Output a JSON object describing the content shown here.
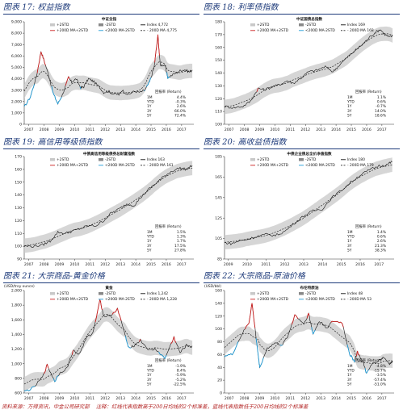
{
  "footer": {
    "source": "资料来源：万得资讯，中金公司研究部",
    "note": "注释：红线代表指数高于200日均线的2个标准差，蓝线代表指数低于200日均线的2个标准差"
  },
  "colors": {
    "title": "#1d3a7a",
    "index": "#111111",
    "ma": "#222222",
    "upper": "#cc1f1f",
    "lower": "#1e9bd7",
    "band": "#c8c8c8"
  },
  "panels": [
    {
      "title": "图表 17:  权益指数",
      "chart_data": {
        "type": "line",
        "chart_title": "中证全指",
        "ylabel": "",
        "y_ticks": [
          "0",
          "1,000",
          "2,000",
          "3,000",
          "4,000",
          "5,000",
          "6,000",
          "7,000",
          "8,000",
          "9,000"
        ],
        "ylim": [
          0,
          9000
        ],
        "x_ticks": [
          "2007",
          "2008",
          "2009",
          "2010",
          "2011",
          "2012",
          "2013",
          "2014",
          "2015",
          "2016",
          "2017"
        ],
        "xlim": [
          2006.7,
          2017.8
        ],
        "legend": [
          "+2STD",
          "-2STD",
          "Index  4,772",
          "+200D MA+2STD",
          "<200D MA-2STD",
          "- 200D MA  4,775"
        ],
        "returns_header": "回报率 (Return)",
        "returns": [
          {
            "k": "1M",
            "v": "4.4%"
          },
          {
            "k": "YTD",
            "v": "-0.3%"
          },
          {
            "k": "1Y",
            "v": "2.6%"
          },
          {
            "k": "3Y",
            "v": "66.0%"
          },
          {
            "k": "5Y",
            "v": "72.4%"
          }
        ],
        "series": [
          [
            2006.7,
            1500
          ],
          [
            2007.1,
            2400
          ],
          [
            2007.5,
            4200
          ],
          [
            2007.8,
            6400
          ],
          [
            2008.0,
            5600
          ],
          [
            2008.3,
            4300
          ],
          [
            2008.6,
            2700
          ],
          [
            2008.9,
            1800
          ],
          [
            2009.2,
            2600
          ],
          [
            2009.6,
            4100
          ],
          [
            2009.8,
            3700
          ],
          [
            2010.1,
            4000
          ],
          [
            2010.4,
            3200
          ],
          [
            2010.6,
            3300
          ],
          [
            2010.9,
            4000
          ],
          [
            2011.2,
            3800
          ],
          [
            2011.6,
            3300
          ],
          [
            2011.9,
            2800
          ],
          [
            2012.2,
            2900
          ],
          [
            2012.5,
            2700
          ],
          [
            2012.9,
            2600
          ],
          [
            2013.1,
            3000
          ],
          [
            2013.5,
            2600
          ],
          [
            2013.9,
            2900
          ],
          [
            2014.3,
            2800
          ],
          [
            2014.6,
            3000
          ],
          [
            2014.9,
            3700
          ],
          [
            2015.2,
            5000
          ],
          [
            2015.45,
            7800
          ],
          [
            2015.6,
            5200
          ],
          [
            2015.9,
            5200
          ],
          [
            2016.1,
            4100
          ],
          [
            2016.5,
            4400
          ],
          [
            2016.9,
            4700
          ],
          [
            2017.2,
            4800
          ],
          [
            2017.5,
            4600
          ],
          [
            2017.7,
            4770
          ]
        ]
      }
    },
    {
      "title": "图表 18:  利率债指数",
      "chart_data": {
        "type": "line",
        "chart_title": "中证国债总指数",
        "ylabel": "",
        "y_ticks": [
          "100",
          "110",
          "120",
          "130",
          "140",
          "150",
          "160",
          "170",
          "180"
        ],
        "ylim": [
          100,
          180
        ],
        "x_ticks": [
          "2007",
          "2008",
          "2009",
          "2010",
          "2011",
          "2012",
          "2013",
          "2014",
          "2015",
          "2016",
          "2017"
        ],
        "xlim": [
          2006.7,
          2017.8
        ],
        "legend": [
          "+2STD",
          "-2STD",
          "Index  169",
          "+200D MA+2STD",
          "<200D MA-2STD",
          "- 200D MA  168"
        ],
        "returns_header": "回报率 (Return)",
        "returns": [
          {
            "k": "1M",
            "v": "1.1%"
          },
          {
            "k": "YTD",
            "v": "0.6%"
          },
          {
            "k": "1Y",
            "v": "-0.7%"
          },
          {
            "k": "3Y",
            "v": "14.0%"
          },
          {
            "k": "5Y",
            "v": "18.6%"
          }
        ],
        "series": [
          [
            2006.7,
            114
          ],
          [
            2007.3,
            113
          ],
          [
            2007.9,
            114
          ],
          [
            2008.4,
            118
          ],
          [
            2008.9,
            128
          ],
          [
            2009.3,
            127
          ],
          [
            2009.8,
            129
          ],
          [
            2010.3,
            131
          ],
          [
            2010.8,
            134
          ],
          [
            2011.2,
            132
          ],
          [
            2011.7,
            136
          ],
          [
            2012.2,
            141
          ],
          [
            2012.7,
            142
          ],
          [
            2013.3,
            145
          ],
          [
            2013.8,
            141
          ],
          [
            2014.2,
            146
          ],
          [
            2014.7,
            152
          ],
          [
            2015.2,
            157
          ],
          [
            2015.7,
            162
          ],
          [
            2016.2,
            168
          ],
          [
            2016.6,
            172
          ],
          [
            2016.9,
            174
          ],
          [
            2017.2,
            170
          ],
          [
            2017.5,
            168
          ],
          [
            2017.7,
            169
          ]
        ]
      }
    },
    {
      "title": "图表 19:  高信用等级债指数",
      "chart_data": {
        "type": "line",
        "chart_title": "中债高信用等级债券总财富指数",
        "ylabel": "",
        "y_ticks": [
          "90",
          "100",
          "110",
          "120",
          "130",
          "140",
          "150",
          "160",
          "170"
        ],
        "ylim": [
          90,
          170
        ],
        "x_ticks": [
          "2007",
          "2008",
          "2009",
          "2010",
          "2011",
          "2012",
          "2013",
          "2014",
          "2015",
          "2016",
          "2017"
        ],
        "xlim": [
          2006.7,
          2017.8
        ],
        "legend": [
          "+2STD",
          "-2STD",
          "Index  163",
          "+200D MA+2STD",
          "<200D MA-2STD",
          "- 200D MA  161"
        ],
        "returns_header": "回报率 (Return)",
        "returns": [
          {
            "k": "1M",
            "v": "1.5%"
          },
          {
            "k": "YTD",
            "v": "1.3%"
          },
          {
            "k": "1Y",
            "v": "1.7%"
          },
          {
            "k": "3Y",
            "v": "17.5%"
          },
          {
            "k": "5Y",
            "v": "27.8%"
          }
        ],
        "series": [
          [
            2006.7,
            100
          ],
          [
            2007.3,
            100
          ],
          [
            2007.9,
            101
          ],
          [
            2008.4,
            104
          ],
          [
            2008.9,
            111
          ],
          [
            2009.4,
            110
          ],
          [
            2009.9,
            112
          ],
          [
            2010.4,
            114
          ],
          [
            2010.9,
            116
          ],
          [
            2011.4,
            116
          ],
          [
            2011.9,
            120
          ],
          [
            2012.4,
            126
          ],
          [
            2012.9,
            129
          ],
          [
            2013.4,
            133
          ],
          [
            2013.9,
            132
          ],
          [
            2014.4,
            139
          ],
          [
            2014.9,
            145
          ],
          [
            2015.4,
            150
          ],
          [
            2015.9,
            155
          ],
          [
            2016.4,
            159
          ],
          [
            2016.9,
            161
          ],
          [
            2017.3,
            160
          ],
          [
            2017.7,
            163
          ]
        ]
      }
    },
    {
      "title": "图表 20:  高收益债指数",
      "chart_data": {
        "type": "line",
        "chart_title": "中债企业债总全价净值指数",
        "ylabel": "",
        "y_ticks": [
          "85",
          "105",
          "125",
          "145",
          "165",
          "185"
        ],
        "ylim": [
          85,
          185
        ],
        "x_ticks": [
          "2009",
          "2010",
          "2011",
          "2012",
          "2013",
          "2014",
          "2015",
          "2016",
          "2017"
        ],
        "xlim": [
          2008.8,
          2017.8
        ],
        "legend": [
          "+2STD",
          "-2STD",
          "Index  180",
          "+200D MA+2STD",
          "<200D MA-2STD",
          "- 200D MA  179"
        ],
        "returns_header": "回报率 (Return)",
        "returns": [
          {
            "k": "1M",
            "v": "1.4%"
          },
          {
            "k": "YTD",
            "v": "0.6%"
          },
          {
            "k": "1Y",
            "v": "2.6%"
          },
          {
            "k": "3Y",
            "v": "21.3%"
          },
          {
            "k": "5Y",
            "v": "38.3%"
          }
        ],
        "series": [
          [
            2008.8,
            101
          ],
          [
            2009.2,
            100
          ],
          [
            2009.6,
            103
          ],
          [
            2010.0,
            104
          ],
          [
            2010.5,
            107
          ],
          [
            2011.0,
            109
          ],
          [
            2011.5,
            108
          ],
          [
            2012.0,
            112
          ],
          [
            2012.5,
            120
          ],
          [
            2013.0,
            127
          ],
          [
            2013.5,
            132
          ],
          [
            2014.0,
            134
          ],
          [
            2014.5,
            145
          ],
          [
            2015.0,
            152
          ],
          [
            2015.5,
            160
          ],
          [
            2016.0,
            167
          ],
          [
            2016.5,
            172
          ],
          [
            2017.0,
            176
          ],
          [
            2017.4,
            177
          ],
          [
            2017.7,
            180
          ]
        ]
      }
    },
    {
      "title": "图表 21:  大宗商品-黄金价格",
      "chart_data": {
        "type": "line",
        "chart_title": "黄金",
        "ylabel": "(USD/troy ounce)",
        "y_ticks": [
          "600",
          "800",
          "1,000",
          "1,200",
          "1,400",
          "1,600",
          "1,800",
          "2,000"
        ],
        "ylim": [
          600,
          2000
        ],
        "x_ticks": [
          "2007",
          "2008",
          "2009",
          "2010",
          "2011",
          "2012",
          "2013",
          "2014",
          "2015",
          "2016",
          "2017"
        ],
        "xlim": [
          2006.7,
          2017.8
        ],
        "legend": [
          "+2STD",
          "-2STD",
          "Index  1,242",
          "+200D MA+2STD",
          "<200D MA-2STD",
          "- 200D MA  1,228"
        ],
        "returns_header": "回报率 (Return)",
        "returns": [
          {
            "k": "1M",
            "v": "-1.9%"
          },
          {
            "k": "YTD",
            "v": "8.4%"
          },
          {
            "k": "1Y",
            "v": "-5.9%"
          },
          {
            "k": "3Y",
            "v": "-5.2%"
          },
          {
            "k": "5Y",
            "v": "-22.5%"
          }
        ],
        "series": [
          [
            2006.7,
            620
          ],
          [
            2007.3,
            670
          ],
          [
            2007.9,
            820
          ],
          [
            2008.2,
            980
          ],
          [
            2008.7,
            760
          ],
          [
            2009.0,
            870
          ],
          [
            2009.5,
            940
          ],
          [
            2009.9,
            1180
          ],
          [
            2010.3,
            1130
          ],
          [
            2010.8,
            1360
          ],
          [
            2011.2,
            1420
          ],
          [
            2011.65,
            1880
          ],
          [
            2011.9,
            1650
          ],
          [
            2012.3,
            1650
          ],
          [
            2012.8,
            1750
          ],
          [
            2013.3,
            1400
          ],
          [
            2013.5,
            1220
          ],
          [
            2013.9,
            1250
          ],
          [
            2014.3,
            1320
          ],
          [
            2014.9,
            1180
          ],
          [
            2015.3,
            1200
          ],
          [
            2015.9,
            1070
          ],
          [
            2016.5,
            1360
          ],
          [
            2016.9,
            1150
          ],
          [
            2017.3,
            1250
          ],
          [
            2017.7,
            1242
          ]
        ]
      }
    },
    {
      "title": "图表 22:  大宗商品-原油价格",
      "chart_data": {
        "type": "line",
        "chart_title": "布伦特原油",
        "ylabel": "(USD/bbl)",
        "y_ticks": [
          "0",
          "20",
          "40",
          "60",
          "80",
          "100",
          "120",
          "140",
          "160"
        ],
        "ylim": [
          0,
          160
        ],
        "x_ticks": [
          "2007",
          "2008",
          "2009",
          "2010",
          "2011",
          "2012",
          "2013",
          "2014",
          "2015",
          "2016",
          "2017"
        ],
        "xlim": [
          2006.7,
          2017.8
        ],
        "legend": [
          "+2STD",
          "-2STD",
          "Index  48",
          "+200D MA+2STD",
          "<200D MA-2STD",
          "- 200D MA  53"
        ],
        "returns_header": "回报率 (Return)",
        "returns": [
          {
            "k": "1M",
            "v": "-4.8%"
          },
          {
            "k": "YTD",
            "v": "-15.7%"
          },
          {
            "k": "1Y",
            "v": "-3.5%"
          },
          {
            "k": "3Y",
            "v": "-57.4%"
          },
          {
            "k": "5Y",
            "v": "-51.0%"
          }
        ],
        "series": [
          [
            2006.7,
            58
          ],
          [
            2007.2,
            60
          ],
          [
            2007.8,
            90
          ],
          [
            2008.3,
            110
          ],
          [
            2008.5,
            140
          ],
          [
            2008.9,
            60
          ],
          [
            2009.0,
            40
          ],
          [
            2009.5,
            70
          ],
          [
            2010.0,
            78
          ],
          [
            2010.5,
            75
          ],
          [
            2010.9,
            92
          ],
          [
            2011.3,
            122
          ],
          [
            2011.9,
            108
          ],
          [
            2012.2,
            124
          ],
          [
            2012.5,
            92
          ],
          [
            2012.9,
            112
          ],
          [
            2013.4,
            102
          ],
          [
            2013.8,
            112
          ],
          [
            2014.4,
            110
          ],
          [
            2014.9,
            60
          ],
          [
            2015.2,
            50
          ],
          [
            2015.4,
            64
          ],
          [
            2015.8,
            46
          ],
          [
            2016.0,
            30
          ],
          [
            2016.4,
            47
          ],
          [
            2016.9,
            52
          ],
          [
            2017.1,
            56
          ],
          [
            2017.5,
            46
          ],
          [
            2017.7,
            48
          ]
        ]
      }
    }
  ]
}
